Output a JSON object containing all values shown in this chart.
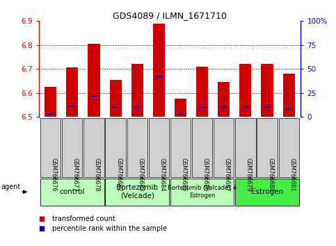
{
  "title": "GDS4089 / ILMN_1671710",
  "samples": [
    "GSM766676",
    "GSM766677",
    "GSM766678",
    "GSM766682",
    "GSM766683",
    "GSM766684",
    "GSM766685",
    "GSM766686",
    "GSM766687",
    "GSM766679",
    "GSM766680",
    "GSM766681"
  ],
  "red_values": [
    6.625,
    6.705,
    6.805,
    6.655,
    6.72,
    6.89,
    6.575,
    6.71,
    6.645,
    6.72,
    6.72,
    6.68
  ],
  "blue_percentiles": [
    3,
    12,
    22,
    10,
    10,
    42,
    2,
    10,
    10,
    10,
    10,
    8
  ],
  "ymin": 6.5,
  "ymax": 6.9,
  "yticks_left": [
    6.5,
    6.6,
    6.7,
    6.8,
    6.9
  ],
  "yticks_right_vals": [
    0,
    25,
    50,
    75,
    100
  ],
  "yticks_right_labels": [
    "0",
    "25",
    "50",
    "75",
    "100%"
  ],
  "left_axis_color": "#cc0000",
  "right_axis_color": "#0000cc",
  "bar_color": "#cc0000",
  "percentile_color": "#0000cc",
  "groups": [
    {
      "label": "control",
      "start": 0,
      "end": 3,
      "color": "#bbffbb"
    },
    {
      "label": "Bortezomib\n(Velcade)",
      "start": 3,
      "end": 6,
      "color": "#bbffbb"
    },
    {
      "label": "Bortezomib (Velcade) +\nEstrogen",
      "start": 6,
      "end": 9,
      "color": "#bbffbb"
    },
    {
      "label": "Estrogen",
      "start": 9,
      "end": 12,
      "color": "#44ee44"
    }
  ],
  "agent_label": "agent",
  "legend_items": [
    {
      "color": "#cc0000",
      "label": "transformed count"
    },
    {
      "color": "#0000cc",
      "label": "percentile rank within the sample"
    }
  ],
  "bar_width": 0.55,
  "fig_width": 4.83,
  "fig_height": 3.54,
  "dpi": 100
}
